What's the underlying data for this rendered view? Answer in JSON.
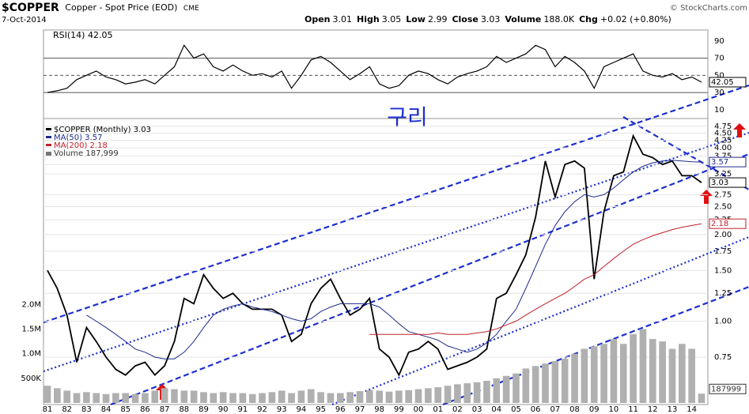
{
  "header": {
    "symbol": "$COPPER",
    "name": "Copper - Spot Price (EOD)",
    "exchange": "CME",
    "date": "7-Oct-2014",
    "quote": [
      {
        "label": "Open",
        "value": "3.01"
      },
      {
        "label": "High",
        "value": "3.05"
      },
      {
        "label": "Low",
        "value": "2.99"
      },
      {
        "label": "Close",
        "value": "3.03"
      },
      {
        "label": "Volume",
        "value": "188.0K"
      },
      {
        "label": "Chg",
        "value": "+0.02 (+0.80%)"
      }
    ],
    "watermark": "© StockCharts.com"
  },
  "chart_data": [
    {
      "type": "line",
      "title": "RSI(14) 42.05",
      "last_label": "42.05",
      "color": "#000000",
      "fill_color": "#4a7a4a",
      "values": [
        30,
        32,
        35,
        45,
        50,
        55,
        48,
        45,
        40,
        42,
        45,
        40,
        50,
        60,
        85,
        70,
        75,
        60,
        55,
        62,
        55,
        50,
        52,
        48,
        55,
        35,
        50,
        68,
        72,
        65,
        55,
        45,
        52,
        60,
        40,
        35,
        38,
        50,
        55,
        52,
        45,
        40,
        48,
        52,
        55,
        60,
        72,
        65,
        70,
        75,
        85,
        80,
        60,
        72,
        65,
        55,
        35,
        60,
        65,
        70,
        75,
        55,
        50,
        48,
        52,
        45,
        48,
        42.05
      ],
      "ylim": [
        8,
        100
      ],
      "yticks": [
        90,
        70,
        50,
        30,
        10
      ],
      "levels": [
        70,
        50,
        30
      ]
    },
    {
      "type": "line",
      "log": true,
      "annotation": "구리",
      "categories": [
        "81",
        null,
        "82",
        null,
        "83",
        null,
        "84",
        null,
        "85",
        null,
        "86",
        null,
        "87",
        null,
        "88",
        null,
        "89",
        null,
        "90",
        null,
        "91",
        null,
        "92",
        null,
        "93",
        null,
        "94",
        null,
        "95",
        null,
        "96",
        null,
        "97",
        null,
        "98",
        null,
        "99",
        null,
        "00",
        null,
        "01",
        null,
        "02",
        null,
        "03",
        null,
        "04",
        null,
        "05",
        null,
        "06",
        null,
        "07",
        null,
        "08",
        null,
        "09",
        null,
        "10",
        null,
        "11",
        null,
        "12",
        null,
        "13",
        null,
        "14",
        null
      ],
      "series": [
        {
          "name": "$COPPER (Monthly) 3.03",
          "last_label": "3.03",
          "color": "#000000",
          "values": [
            1.5,
            1.3,
            1.05,
            0.72,
            0.95,
            0.85,
            0.75,
            0.68,
            0.65,
            0.7,
            0.72,
            0.65,
            0.7,
            0.85,
            1.2,
            1.15,
            1.45,
            1.3,
            1.2,
            1.25,
            1.15,
            1.1,
            1.1,
            1.1,
            1.05,
            0.85,
            0.9,
            1.15,
            1.3,
            1.4,
            1.2,
            1.05,
            1.1,
            1.2,
            0.8,
            0.75,
            0.65,
            0.78,
            0.8,
            0.85,
            0.8,
            0.68,
            0.7,
            0.72,
            0.75,
            0.8,
            1.2,
            1.25,
            1.45,
            1.7,
            2.3,
            3.6,
            2.7,
            3.5,
            3.6,
            3.4,
            1.4,
            2.4,
            3.2,
            3.3,
            4.4,
            3.8,
            3.7,
            3.5,
            3.6,
            3.2,
            3.2,
            3.03
          ]
        },
        {
          "name": "MA(50) 3.57",
          "last_label": "3.57",
          "color": "#1f2a8a",
          "values": [
            null,
            null,
            null,
            null,
            1.05,
            1.0,
            0.95,
            0.9,
            0.85,
            0.8,
            0.78,
            0.75,
            0.74,
            0.74,
            0.78,
            0.85,
            0.95,
            1.05,
            1.1,
            1.13,
            1.15,
            1.12,
            1.1,
            1.08,
            1.05,
            1.02,
            1.0,
            1.02,
            1.08,
            1.12,
            1.15,
            1.15,
            1.15,
            1.15,
            1.12,
            1.05,
            0.98,
            0.92,
            0.9,
            0.88,
            0.86,
            0.82,
            0.8,
            0.78,
            0.8,
            0.84,
            0.9,
            1.0,
            1.1,
            1.3,
            1.55,
            1.85,
            2.15,
            2.4,
            2.6,
            2.75,
            2.7,
            2.75,
            2.9,
            3.1,
            3.3,
            3.45,
            3.55,
            3.6,
            3.62,
            3.6,
            3.58,
            3.57
          ]
        },
        {
          "name": "MA(200) 2.18",
          "last_label": "2.18",
          "color": "#c0202a",
          "values": [
            null,
            null,
            null,
            null,
            null,
            null,
            null,
            null,
            null,
            null,
            null,
            null,
            null,
            null,
            null,
            null,
            null,
            null,
            null,
            null,
            null,
            null,
            null,
            null,
            null,
            null,
            null,
            null,
            null,
            null,
            null,
            null,
            null,
            0.9,
            0.9,
            0.9,
            0.9,
            0.9,
            0.9,
            0.9,
            0.91,
            0.9,
            0.9,
            0.9,
            0.91,
            0.92,
            0.94,
            0.97,
            1.0,
            1.05,
            1.1,
            1.15,
            1.2,
            1.25,
            1.32,
            1.4,
            1.45,
            1.55,
            1.65,
            1.75,
            1.85,
            1.92,
            1.98,
            2.03,
            2.08,
            2.12,
            2.15,
            2.18
          ]
        }
      ],
      "ylim": [
        0.52,
        4.9
      ],
      "yticks": [
        0.75,
        {
          "value": 1,
          "label": "1.00"
        },
        1.25,
        {
          "value": 1.5,
          "label": "1.50"
        },
        1.75,
        {
          "value": 2,
          "label": "2.00"
        },
        2.25,
        {
          "value": 2.5,
          "label": "2.50"
        },
        2.75,
        3.25,
        {
          "value": 3.5,
          "label": "3.50"
        },
        3.75,
        {
          "value": 4,
          "label": "4.00"
        },
        4.25,
        {
          "value": 4.5,
          "label": "4.50"
        },
        4.75
      ],
      "volume": {
        "name": "Volume 187,999",
        "last_label": "187999",
        "color": "#b0b0b0",
        "values": [
          350000,
          300000,
          250000,
          200000,
          220000,
          200000,
          180000,
          200000,
          200000,
          180000,
          200000,
          250000,
          300000,
          280000,
          250000,
          250000,
          220000,
          200000,
          220000,
          200000,
          200000,
          180000,
          200000,
          220000,
          250000,
          200000,
          250000,
          280000,
          220000,
          200000,
          200000,
          220000,
          240000,
          260000,
          250000,
          230000,
          250000,
          260000,
          280000,
          300000,
          320000,
          350000,
          380000,
          400000,
          420000,
          450000,
          500000,
          550000,
          600000,
          700000,
          750000,
          800000,
          850000,
          900000,
          1000000,
          1100000,
          1150000,
          1200000,
          1300000,
          1200000,
          1400000,
          1500000,
          1300000,
          1250000,
          1100000,
          1200000,
          1100000,
          187999
        ],
        "ylim": [
          0,
          5700000
        ],
        "yticks": [
          {
            "value": 2000000,
            "label": "2.0M"
          },
          {
            "value": 1500000,
            "label": "1.5M"
          },
          {
            "value": 1000000,
            "label": "1.0M"
          },
          {
            "value": 500000,
            "label": "500K"
          }
        ]
      }
    }
  ]
}
